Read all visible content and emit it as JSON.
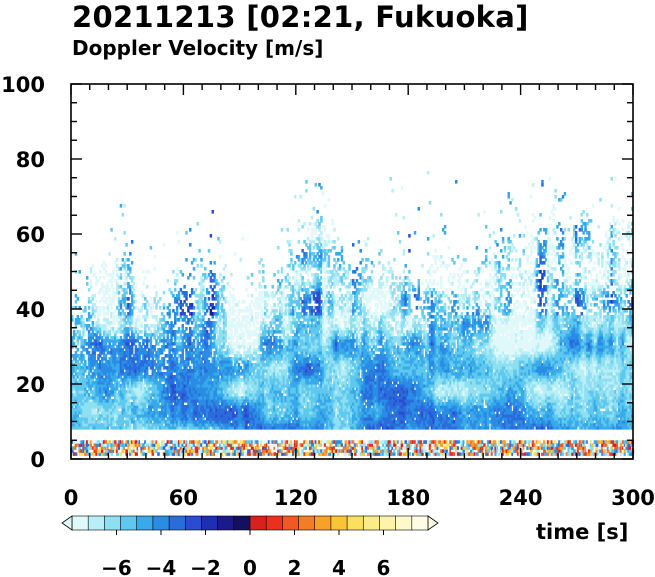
{
  "chart_data": {
    "type": "heatmap",
    "title": "20211213 [02:21, Fukuoka]",
    "subtitle": "Doppler Velocity [m/s]",
    "xlabel": "time [s]",
    "ylabel": "",
    "xlim": [
      0,
      300
    ],
    "ylim": [
      0,
      100
    ],
    "xticks": [
      0,
      60,
      120,
      180,
      240,
      300
    ],
    "yticks": [
      0,
      20,
      40,
      60,
      80,
      100
    ],
    "colorbar": {
      "range": [
        -8,
        8
      ],
      "tick_values": [
        -6,
        -4,
        -2,
        0,
        2,
        4,
        6
      ],
      "tick_labels": [
        "−6",
        "−4",
        "−2",
        "0",
        "2",
        "4",
        "6"
      ],
      "colors_negative": [
        "#e0f8fa",
        "#b8eef6",
        "#8fdff2",
        "#5ec8ee",
        "#38aaea",
        "#2a8ce4",
        "#2a6cdc",
        "#2a4cd0",
        "#1e2fb4",
        "#1a1a8a",
        "#141060"
      ],
      "colors_positive": [
        "#d8201c",
        "#ec3020",
        "#f05a22",
        "#f47c24",
        "#f8a02a",
        "#f9c43a",
        "#fbe060",
        "#fcec88",
        "#fdf3aa",
        "#fef8cc",
        "#fffbe4"
      ]
    },
    "rows": {
      "y_min": 8,
      "y_max": 100,
      "dy": 0.8,
      "dt": 1,
      "blank_band_y": [
        4.5,
        8
      ],
      "near_ground_band_y": [
        1,
        4.5
      ]
    },
    "profile": {
      "dense_top_y": 28,
      "sparse_top_y": 52,
      "max_echo_y": 76,
      "velocity_near_ground": -3.5,
      "velocity_high": -1.0
    }
  }
}
